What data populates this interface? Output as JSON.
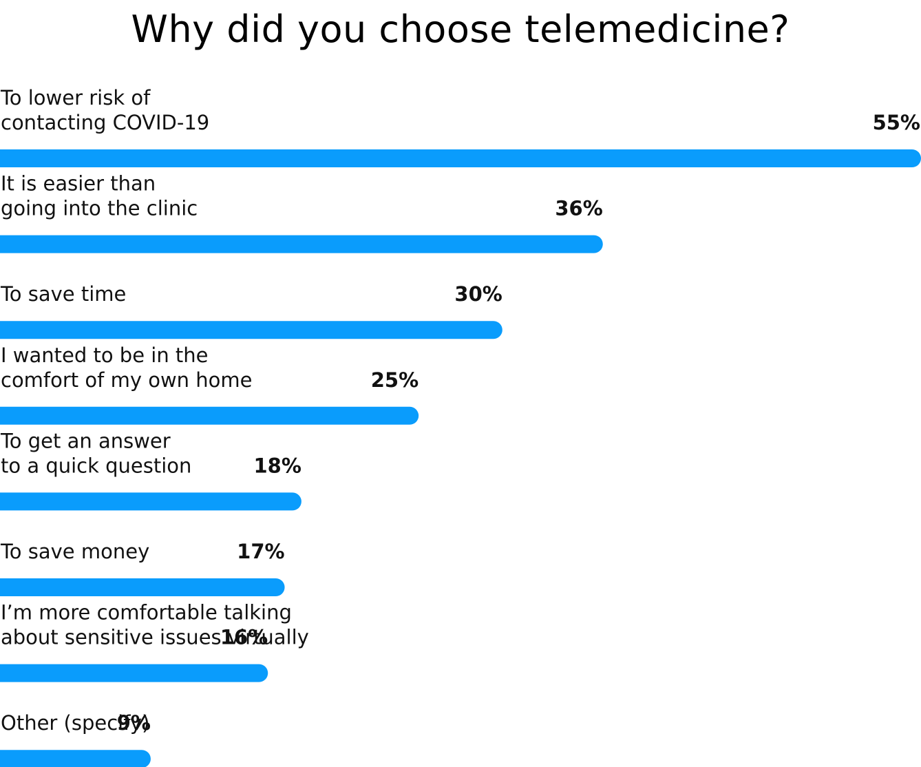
{
  "chart_data": {
    "type": "bar",
    "orientation": "horizontal",
    "title": "Why did you choose telemedicine?",
    "categories": [
      [
        "To lower risk of",
        "contacting COVID-19"
      ],
      [
        "It is easier than",
        "going into the clinic"
      ],
      [
        "To save time"
      ],
      [
        "I wanted to be in the",
        "comfort of my own home"
      ],
      [
        "To get an answer",
        "to a quick question"
      ],
      [
        "To save money"
      ],
      [
        "I’m more comfortable talking",
        "about sensitive issues virtually"
      ],
      [
        "Other (specify)"
      ]
    ],
    "values": [
      55,
      36,
      30,
      25,
      18,
      17,
      16,
      9
    ],
    "value_labels": [
      "55%",
      "36%",
      "30%",
      "25%",
      "18%",
      "17%",
      "16%",
      "9%"
    ],
    "unit": "%",
    "xlim": [
      0,
      55
    ],
    "grid": false,
    "bar_color": "#0a9cfc"
  }
}
